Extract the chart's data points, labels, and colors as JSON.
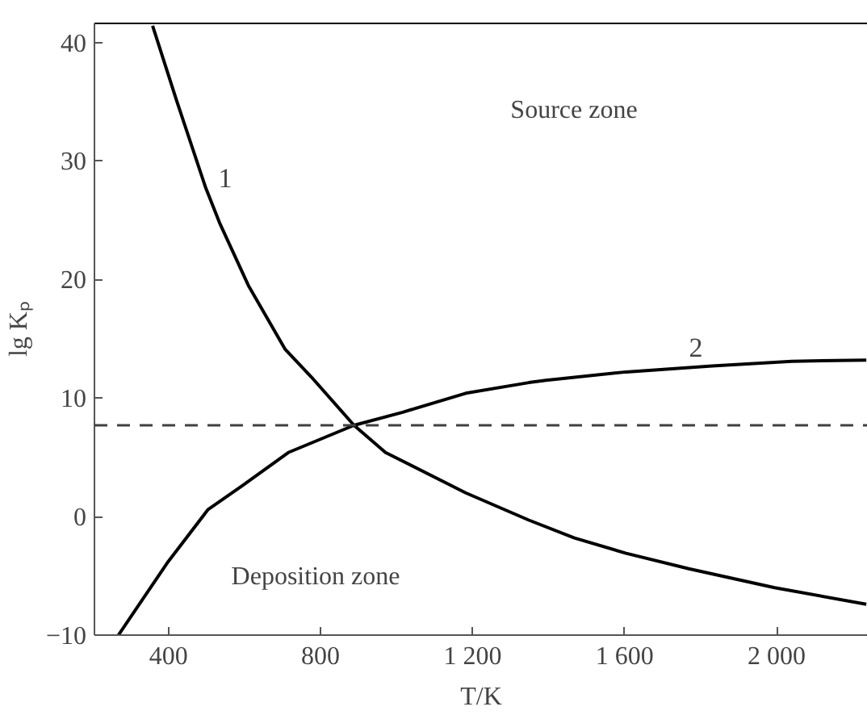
{
  "chart_data": {
    "type": "line",
    "xlabel": "T/K",
    "ylabel": "lg Kₚ",
    "xlim": [
      205,
      2240
    ],
    "ylim": [
      -10,
      41.6
    ],
    "xticks": [
      400,
      800,
      {
        "value": 1200,
        "label": "1 200"
      },
      {
        "value": 1600,
        "label": "1 600"
      },
      {
        "value": 2000,
        "label": "2 000"
      }
    ],
    "yticks": [
      -10,
      0,
      10,
      20,
      30,
      40
    ],
    "grid": false,
    "marker": "none",
    "line_style": "solid",
    "series": [
      {
        "name": "1",
        "color": "#000000",
        "x": [
          358,
          421,
          497,
          534,
          610,
          707,
          775,
          888,
          971,
          1182,
          1348,
          1468,
          1604,
          1769,
          1995,
          2236
        ],
        "values": [
          41.4,
          35.1,
          27.8,
          24.8,
          19.5,
          14.1,
          11.8,
          7.7,
          5.4,
          2.0,
          -0.3,
          -1.8,
          -3.1,
          -4.4,
          -6.0,
          -7.4
        ]
      },
      {
        "name": "2",
        "color": "#000000",
        "x": [
          268,
          399,
          504,
          594,
          715,
          888,
          1016,
          1182,
          1348,
          1393,
          1604,
          1830,
          2040,
          2236
        ],
        "values": [
          -10,
          -3.8,
          0.6,
          2.6,
          5.4,
          7.7,
          8.8,
          10.4,
          11.3,
          11.5,
          12.2,
          12.7,
          13.1,
          13.2
        ]
      }
    ],
    "ref_lines": [
      {
        "axis": "y",
        "value": 7.7,
        "color": "#404040",
        "line_style": "dashed"
      }
    ],
    "annotations": [
      "Source zone",
      "Deposition zone"
    ]
  }
}
